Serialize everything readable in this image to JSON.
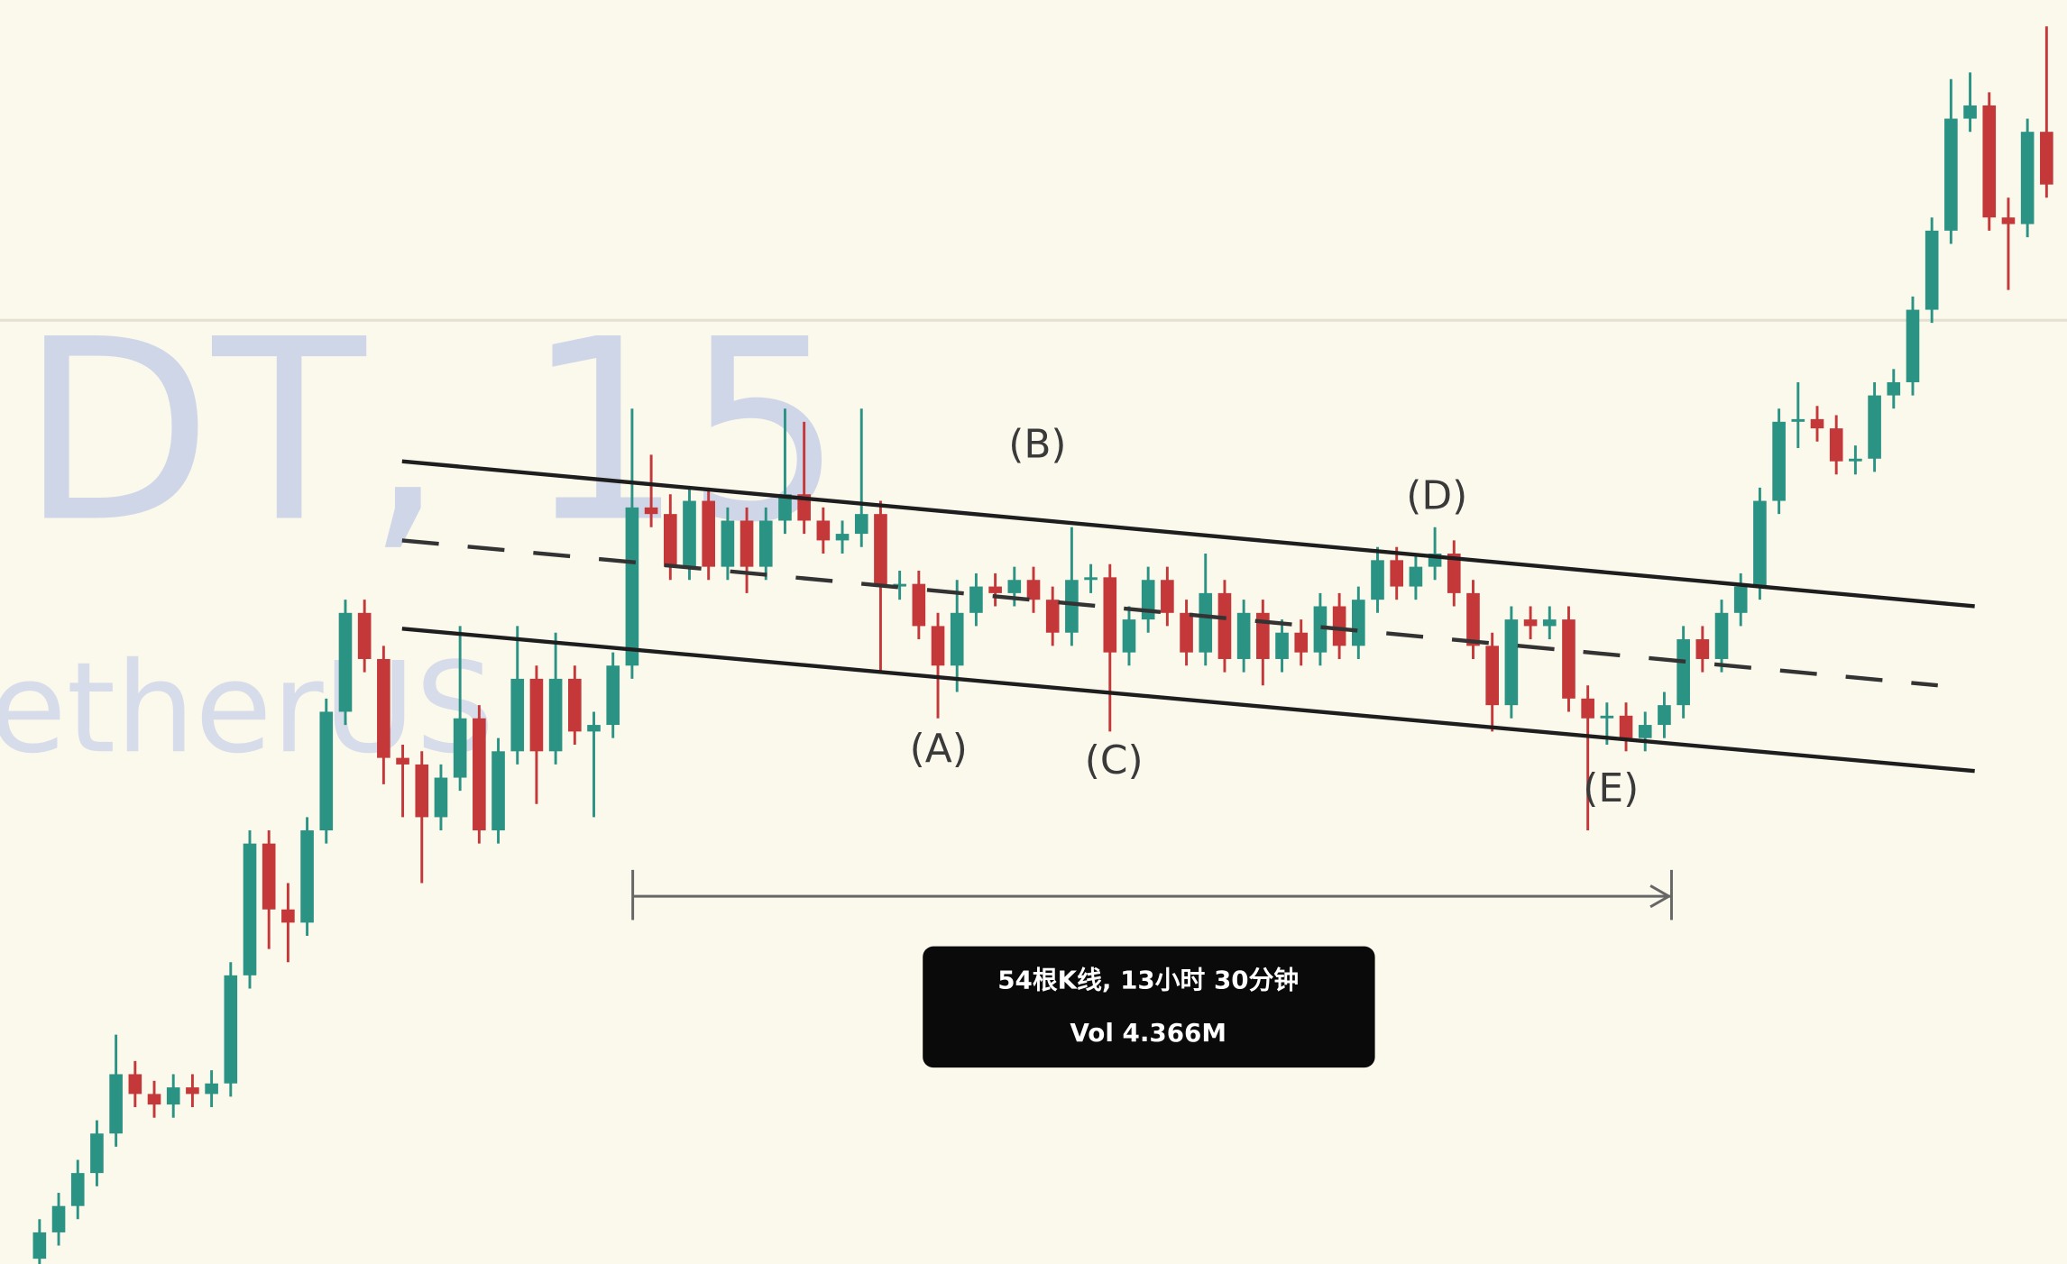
{
  "watermark": {
    "symbol": "DT, 15",
    "name": "etherUS"
  },
  "chart_data": {
    "type": "candlestick",
    "open": [
      4,
      24,
      44,
      69,
      99,
      144,
      129,
      121,
      134,
      129,
      137,
      219,
      319,
      269,
      259,
      329,
      419,
      494,
      459,
      384,
      379,
      339,
      369,
      414,
      329,
      389,
      444,
      389,
      444,
      404,
      409,
      454,
      574,
      569,
      529,
      579,
      529,
      564,
      529,
      564,
      584,
      564,
      549,
      554,
      569,
      514,
      516,
      484,
      454,
      494,
      514,
      509,
      519,
      504,
      479,
      519,
      521,
      464,
      489,
      519,
      494,
      464,
      509,
      459,
      494,
      459,
      479,
      464,
      499,
      469,
      504,
      534,
      514,
      529,
      539,
      509,
      469,
      424,
      489,
      484,
      489,
      429,
      414,
      416,
      399,
      409,
      424,
      474,
      459,
      494,
      514,
      579,
      639,
      641,
      634,
      609,
      611,
      659,
      669,
      724,
      784,
      869,
      879,
      794,
      789,
      859
    ],
    "high": [
      34,
      54,
      79,
      109,
      174,
      154,
      139,
      144,
      144,
      147,
      229,
      329,
      329,
      289,
      339,
      429,
      504,
      504,
      469,
      394,
      389,
      379,
      484,
      424,
      399,
      484,
      454,
      479,
      454,
      419,
      464,
      649,
      614,
      584,
      589,
      589,
      574,
      574,
      574,
      649,
      639,
      574,
      564,
      649,
      579,
      526,
      526,
      494,
      519,
      524,
      524,
      529,
      529,
      514,
      559,
      531,
      531,
      499,
      529,
      529,
      504,
      539,
      519,
      504,
      504,
      489,
      489,
      509,
      509,
      514,
      544,
      544,
      539,
      559,
      549,
      519,
      479,
      499,
      499,
      499,
      499,
      439,
      426,
      426,
      419,
      434,
      484,
      484,
      504,
      524,
      589,
      649,
      669,
      651,
      644,
      621,
      669,
      679,
      734,
      794,
      899,
      904,
      889,
      809,
      869,
      939
    ],
    "low": [
      0,
      14,
      34,
      59,
      89,
      119,
      111,
      111,
      119,
      119,
      127,
      209,
      239,
      229,
      249,
      319,
      409,
      449,
      364,
      339,
      289,
      329,
      359,
      319,
      319,
      379,
      349,
      379,
      394,
      339,
      399,
      444,
      559,
      519,
      519,
      519,
      519,
      509,
      519,
      554,
      554,
      539,
      539,
      544,
      449,
      504,
      474,
      414,
      434,
      484,
      499,
      499,
      494,
      469,
      469,
      509,
      404,
      454,
      479,
      484,
      454,
      454,
      449,
      449,
      439,
      449,
      454,
      454,
      459,
      459,
      494,
      504,
      504,
      519,
      499,
      459,
      404,
      414,
      474,
      474,
      419,
      329,
      394,
      389,
      389,
      399,
      414,
      449,
      449,
      484,
      504,
      569,
      619,
      624,
      599,
      599,
      601,
      649,
      659,
      714,
      774,
      859,
      784,
      739,
      779,
      809
    ],
    "close": [
      24,
      44,
      69,
      99,
      144,
      129,
      121,
      134,
      129,
      137,
      219,
      319,
      269,
      259,
      329,
      419,
      494,
      459,
      384,
      379,
      339,
      369,
      414,
      329,
      389,
      444,
      389,
      444,
      404,
      409,
      454,
      574,
      569,
      529,
      579,
      529,
      564,
      529,
      564,
      584,
      564,
      549,
      554,
      569,
      514,
      516,
      484,
      454,
      494,
      514,
      509,
      519,
      504,
      479,
      519,
      521,
      464,
      489,
      519,
      494,
      464,
      509,
      459,
      494,
      459,
      479,
      464,
      499,
      469,
      504,
      534,
      514,
      529,
      539,
      509,
      469,
      424,
      489,
      484,
      489,
      429,
      414,
      416,
      399,
      409,
      424,
      474,
      459,
      494,
      514,
      579,
      639,
      641,
      634,
      609,
      611,
      659,
      669,
      724,
      784,
      869,
      879,
      794,
      789,
      859,
      819
    ],
    "ylim": [
      0,
      959
    ],
    "colors": {
      "up": "#2a9384",
      "down": "#c4383a"
    },
    "annotations": [
      "(A)",
      "(B)",
      "(C)",
      "(D)",
      "(E)"
    ],
    "measure": {
      "range": "54根K线, 13小时 30分钟",
      "volume": "Vol 4.366M"
    }
  }
}
